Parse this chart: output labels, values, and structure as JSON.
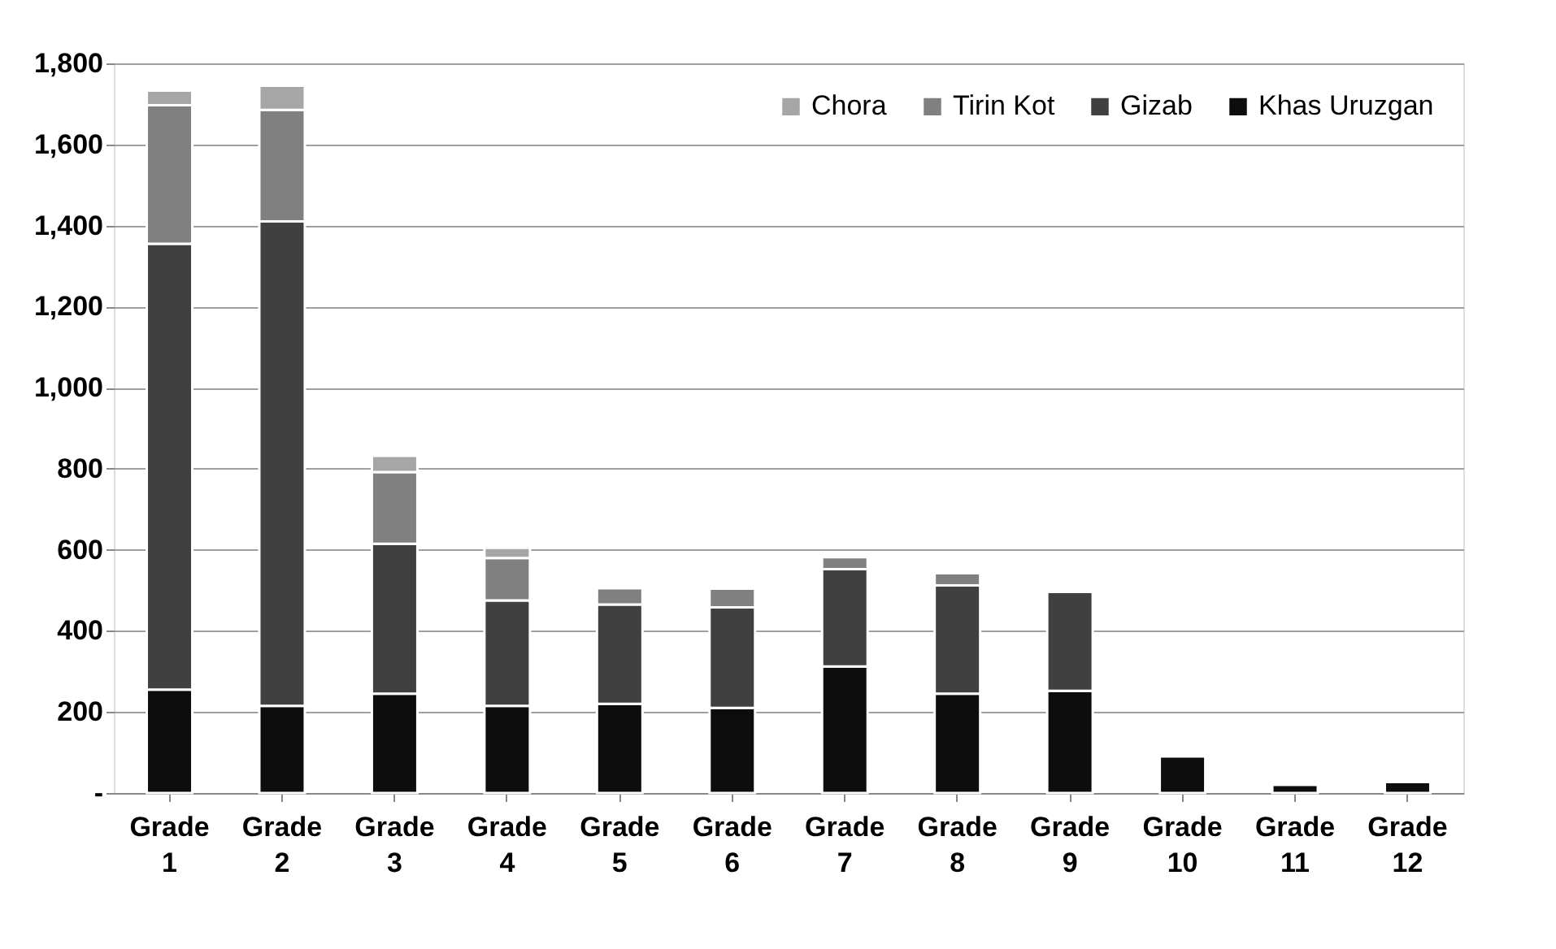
{
  "chart_data": {
    "type": "bar",
    "stacked": true,
    "categories": [
      "Grade 1",
      "Grade 2",
      "Grade 3",
      "Grade 4",
      "Grade 5",
      "Grade 6",
      "Grade 7",
      "Grade 8",
      "Grade 9",
      "Grade 10",
      "Grade 11",
      "Grade 12"
    ],
    "series": [
      {
        "name": "Khas Uruzgan",
        "color": "#0d0d0d",
        "values": [
          255,
          215,
          245,
          215,
          220,
          210,
          312,
          245,
          252,
          90,
          20,
          27
        ]
      },
      {
        "name": "Gizab",
        "color": "#404040",
        "values": [
          1100,
          1195,
          370,
          260,
          245,
          248,
          240,
          267,
          244,
          null,
          null,
          null
        ]
      },
      {
        "name": "Tirin Kot",
        "color": "#808080",
        "values": [
          342,
          275,
          177,
          105,
          40,
          46,
          30,
          30,
          null,
          null,
          null,
          null
        ]
      },
      {
        "name": "Chora",
        "color": "#a6a6a6",
        "values": [
          36,
          60,
          40,
          25,
          null,
          null,
          null,
          null,
          null,
          null,
          null,
          null
        ]
      }
    ],
    "ylim": [
      0,
      1800
    ],
    "yticks": [
      {
        "value": 0,
        "label": "-"
      },
      200,
      400,
      600,
      800,
      {
        "value": 1000,
        "label": "1,000"
      },
      {
        "value": 1200,
        "label": "1,200"
      },
      {
        "value": 1400,
        "label": "1,400"
      },
      {
        "value": 1600,
        "label": "1,600"
      },
      {
        "value": 1800,
        "label": "1,800"
      }
    ],
    "grid": "y",
    "legend": "top right"
  }
}
